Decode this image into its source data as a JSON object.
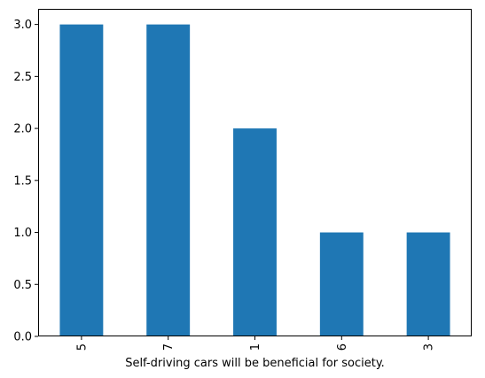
{
  "chart_data": {
    "type": "bar",
    "title": "",
    "xlabel": "Self-driving cars will be beneficial for society.",
    "ylabel": "",
    "categories": [
      "5",
      "7",
      "1",
      "6",
      "3"
    ],
    "values": [
      3,
      3,
      2,
      1,
      1
    ],
    "ylim": [
      0,
      3.15
    ],
    "yticks": [
      "0.0",
      "0.5",
      "1.0",
      "1.5",
      "2.0",
      "2.5",
      "3.0"
    ],
    "bar_color": "#1f77b4",
    "grid": false,
    "legend": "none"
  }
}
